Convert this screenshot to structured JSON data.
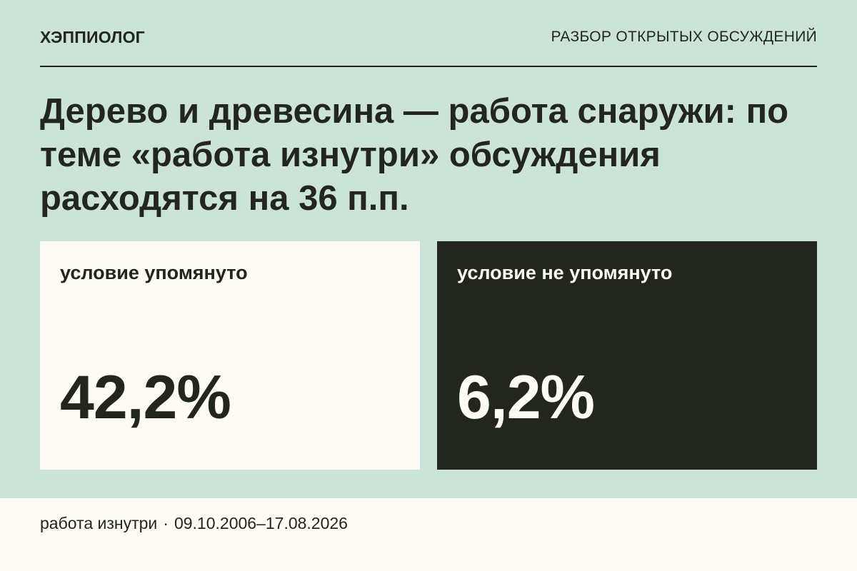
{
  "header": {
    "brand": "ХЭППИОЛОГ",
    "section": "РАЗБОР ОТКРЫТЫХ ОБСУЖДЕНИЙ"
  },
  "headline": "Дерево и древесина — работа снаружи: по теме «работа изнутри» обсуждения расходятся на 36 п.п.",
  "cards": [
    {
      "label": "условие упомянуто",
      "value": "42,2%"
    },
    {
      "label": "условие не упомянуто",
      "value": "6,2%"
    }
  ],
  "footer": {
    "topic": "работа изнутри",
    "separator": "·",
    "date_range": "09.10.2006–17.08.2026"
  },
  "colors": {
    "background": "#cce3da",
    "light_panel": "#fdfbf3",
    "dark_panel": "#23261f"
  }
}
